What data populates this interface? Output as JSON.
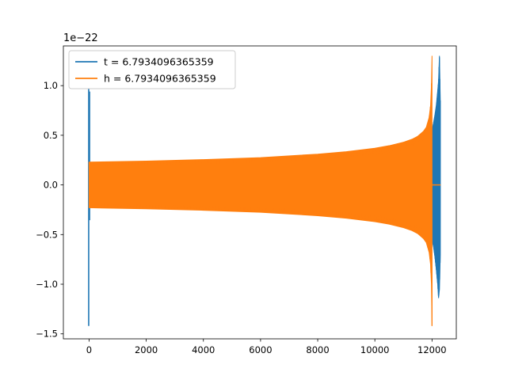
{
  "chart_data": {
    "type": "line",
    "title": "",
    "xlabel": "",
    "ylabel": "",
    "y_offset_label": "1e−22",
    "xlim": [
      -900,
      12850
    ],
    "ylim": [
      -1.55,
      1.4
    ],
    "x_ticks": [
      0,
      2000,
      4000,
      6000,
      8000,
      10000,
      12000
    ],
    "x_tick_labels": [
      "0",
      "2000",
      "4000",
      "6000",
      "8000",
      "10000",
      "12000"
    ],
    "y_ticks": [
      -1.5,
      -1.0,
      -0.5,
      0.0,
      0.5,
      1.0
    ],
    "y_tick_labels": [
      "−1.5",
      "−1.0",
      "−0.5",
      "0.0",
      "0.5",
      "1.0"
    ],
    "grid": false,
    "legend_position": "top-left",
    "series": [
      {
        "name": "t = 6.7934096365359",
        "color": "#1f77b4",
        "spikes": [
          {
            "x": 0,
            "y_min": -1.42,
            "y_max": 0.97
          }
        ],
        "oscillation_envelope": {
          "x": [
            12000,
            12050,
            12100,
            12150,
            12200,
            12230,
            12260,
            12290
          ],
          "upper": [
            0.55,
            0.62,
            0.7,
            0.8,
            0.95,
            1.05,
            1.3,
            0.85
          ],
          "lower": [
            -0.55,
            -0.62,
            -0.72,
            -0.85,
            -1.0,
            -1.14,
            -1.05,
            -0.7
          ]
        }
      },
      {
        "name": "h = 6.7934096365359",
        "color": "#ff7f0e",
        "oscillation_envelope": {
          "x": [
            0,
            2000,
            4000,
            6000,
            8000,
            9000,
            10000,
            10500,
            11000,
            11300,
            11500,
            11700,
            11800,
            11900,
            11950,
            11980,
            12000
          ],
          "upper": [
            0.23,
            0.24,
            0.255,
            0.275,
            0.31,
            0.335,
            0.37,
            0.395,
            0.43,
            0.46,
            0.49,
            0.54,
            0.58,
            0.68,
            0.8,
            1.0,
            1.3
          ],
          "lower": [
            -0.23,
            -0.24,
            -0.255,
            -0.275,
            -0.31,
            -0.335,
            -0.37,
            -0.395,
            -0.43,
            -0.46,
            -0.49,
            -0.54,
            -0.58,
            -0.68,
            -0.8,
            -1.0,
            -1.42
          ]
        },
        "tail": {
          "x_start": 12000,
          "x_end": 12300,
          "y": 0.0
        }
      }
    ]
  }
}
